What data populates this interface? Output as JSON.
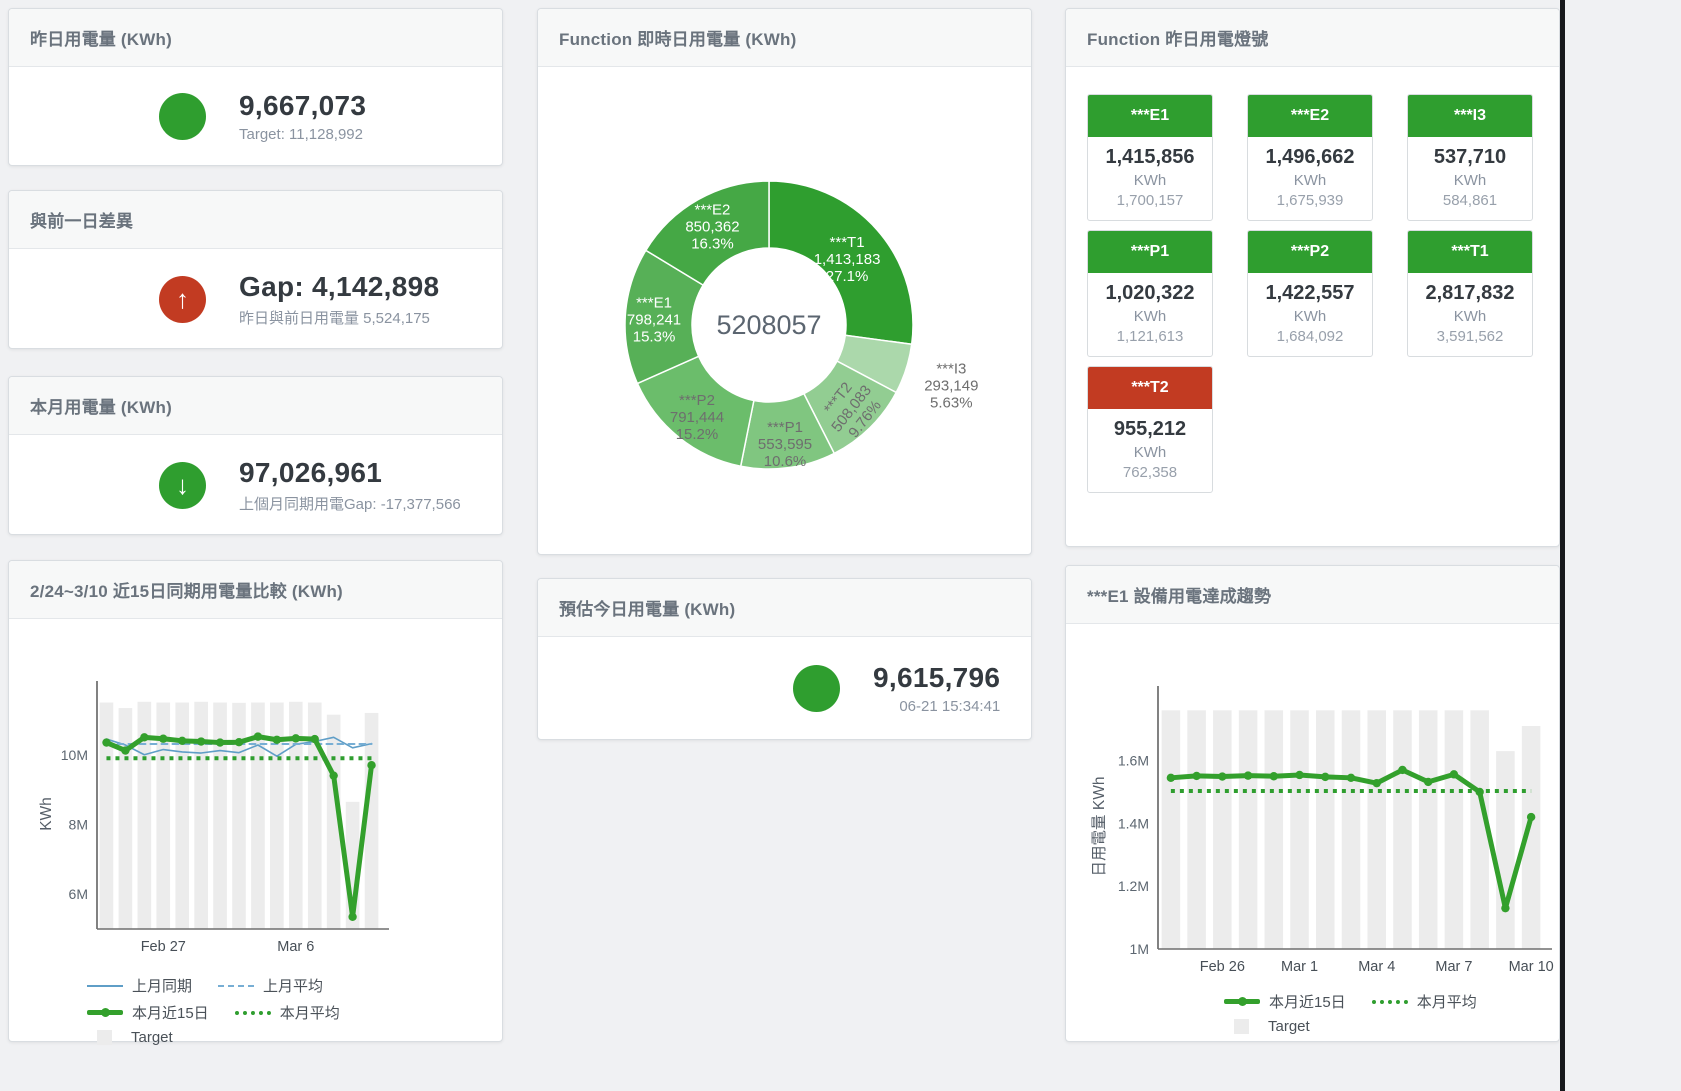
{
  "cards": {
    "yesterday": {
      "title": "昨日用電量 (KWh)",
      "value": "9,667,073",
      "subtext": "Target: 11,128,992",
      "icon": {
        "color": "#2f9e2f",
        "arrow": ""
      }
    },
    "day_gap": {
      "title": "與前一日差異",
      "value": "Gap: 4,142,898",
      "subtext": "昨日與前日用電量 5,524,175",
      "icon": {
        "color": "#c23b22",
        "arrow": "↑"
      }
    },
    "month": {
      "title": "本月用電量 (KWh)",
      "value": "97,026,961",
      "subtext": "上個月同期用電Gap: -17,377,566",
      "icon": {
        "color": "#2f9e2f",
        "arrow": "↓"
      }
    },
    "estimate": {
      "title": "預估今日用電量 (KWh)",
      "value": "9,615,796",
      "subtext": "06-21 15:34:41",
      "icon": {
        "color": "#2f9e2f",
        "arrow": ""
      }
    }
  },
  "status_card": {
    "title": "Function 昨日用電燈號",
    "tiles": [
      {
        "name": "***E1",
        "value": "1,415,856",
        "unit": "KWh",
        "target": "1,700,157",
        "status_color": "#2f9e2f"
      },
      {
        "name": "***E2",
        "value": "1,496,662",
        "unit": "KWh",
        "target": "1,675,939",
        "status_color": "#2f9e2f"
      },
      {
        "name": "***I3",
        "value": "537,710",
        "unit": "KWh",
        "target": "584,861",
        "status_color": "#2f9e2f"
      },
      {
        "name": "***P1",
        "value": "1,020,322",
        "unit": "KWh",
        "target": "1,121,613",
        "status_color": "#2f9e2f"
      },
      {
        "name": "***P2",
        "value": "1,422,557",
        "unit": "KWh",
        "target": "1,684,092",
        "status_color": "#2f9e2f"
      },
      {
        "name": "***T1",
        "value": "2,817,832",
        "unit": "KWh",
        "target": "3,591,562",
        "status_color": "#2f9e2f"
      },
      {
        "name": "***T2",
        "value": "955,212",
        "unit": "KWh",
        "target": "762,358",
        "status_color": "#c23b22"
      }
    ]
  },
  "chart_data": [
    {
      "type": "pie",
      "title": "Function 即時日用電量 (KWh)",
      "center_total": "5208057",
      "total": 5208057,
      "slices": [
        {
          "name": "***T1",
          "value": 1413183,
          "label_value": "1,413,183",
          "pct": "27.1%",
          "color": "#2f9e2f",
          "label_color": "#ffffff",
          "label_r": 0.72
        },
        {
          "name": "***I3",
          "value": 293149,
          "label_value": "293,149",
          "pct": "5.63%",
          "color": "#abd8ab",
          "label_color": "#6e6e6e",
          "label_r": 1.33
        },
        {
          "name": "***T2",
          "value": 508083,
          "label_value": "508,083",
          "pct": "9.76%",
          "color": "#92cd92",
          "label_color": "#6e6e6e",
          "label_r": 0.8,
          "rotate": -52
        },
        {
          "name": "***P1",
          "value": 553595,
          "label_value": "553,595",
          "pct": "10.6%",
          "color": "#80c680",
          "label_color": "#6e6e6e",
          "label_r": 0.82
        },
        {
          "name": "***P2",
          "value": 791444,
          "label_value": "791,444",
          "pct": "15.2%",
          "color": "#6bbd6b",
          "label_color": "#6e6e6e",
          "label_r": 0.8
        },
        {
          "name": "***E1",
          "value": 798241,
          "label_value": "798,241",
          "pct": "15.3%",
          "color": "#57b057",
          "label_color": "#ffffff",
          "label_r": 0.8
        },
        {
          "name": "***E2",
          "value": 850362,
          "label_value": "850,362",
          "pct": "16.3%",
          "color": "#45a845",
          "label_color": "#ffffff",
          "label_r": 0.8
        }
      ]
    },
    {
      "type": "line",
      "title": "2/24~3/10 近15日同期用電量比較 (KWh)",
      "ylabel": "KWh",
      "y_min": 5000000,
      "y_max": 11600000,
      "y_ticks": [
        {
          "value": 6000000,
          "label": "6M"
        },
        {
          "value": 8000000,
          "label": "8M"
        },
        {
          "value": 10000000,
          "label": "10M"
        }
      ],
      "x_ticks": [
        {
          "index": 3,
          "label": "Feb 27"
        },
        {
          "index": 10,
          "label": "Mar 6"
        }
      ],
      "bar_series": {
        "name": "Target",
        "color": "#ececec",
        "values": [
          11500000,
          11340000,
          11520000,
          11500000,
          11500000,
          11520000,
          11500000,
          11490000,
          11500000,
          11500000,
          11520000,
          11500000,
          11150000,
          8650000,
          11200000
        ]
      },
      "series": [
        {
          "name": "上月同期",
          "style": "thin",
          "color": "#5f9ec7",
          "values": [
            10450000,
            10280000,
            10000000,
            10150000,
            10080000,
            10050000,
            10120000,
            10060000,
            10280000,
            9960000,
            10300000,
            10380000,
            10500000,
            10200000,
            10320000
          ]
        },
        {
          "name": "上月平均",
          "style": "dashed",
          "color": "#77aed4",
          "constant": 10310000
        },
        {
          "name": "本月近15日",
          "style": "thick",
          "color": "#33a02c",
          "values": [
            10350000,
            10120000,
            10500000,
            10460000,
            10400000,
            10380000,
            10350000,
            10360000,
            10520000,
            10430000,
            10470000,
            10450000,
            9400000,
            5350000,
            9700000
          ]
        },
        {
          "name": "本月平均",
          "style": "dotted",
          "color": "#2f9e2f",
          "constant": 9900000
        }
      ],
      "legend_rows": [
        [
          {
            "style": "thin",
            "color": "#5f9ec7",
            "label": "上月同期"
          },
          {
            "style": "dashed",
            "color": "#77aed4",
            "label": "上月平均"
          }
        ],
        [
          {
            "style": "thick",
            "color": "#33a02c",
            "label": "本月近15日"
          },
          {
            "style": "dotted",
            "color": "#2f9e2f",
            "label": "本月平均"
          }
        ],
        [
          {
            "style": "square",
            "color": "#ececec",
            "label": "Target"
          }
        ]
      ]
    },
    {
      "type": "line",
      "title": "***E1 設備用電達成趨勢",
      "ylabel": "日用電量 KWh",
      "y_min": 1000000,
      "y_max": 1780000,
      "y_ticks": [
        {
          "value": 1000000,
          "label": "1M"
        },
        {
          "value": 1200000,
          "label": "1.2M"
        },
        {
          "value": 1400000,
          "label": "1.4M"
        },
        {
          "value": 1600000,
          "label": "1.6M"
        }
      ],
      "x_ticks": [
        {
          "index": 2,
          "label": "Feb 26"
        },
        {
          "index": 5,
          "label": "Mar 1"
        },
        {
          "index": 8,
          "label": "Mar 4"
        },
        {
          "index": 11,
          "label": "Mar 7"
        },
        {
          "index": 14,
          "label": "Mar 10"
        }
      ],
      "bar_series": {
        "name": "Target",
        "color": "#ececec",
        "values": [
          1760000,
          1760000,
          1760000,
          1760000,
          1760000,
          1760000,
          1760000,
          1760000,
          1760000,
          1760000,
          1760000,
          1760000,
          1760000,
          1630000,
          1710000
        ]
      },
      "series": [
        {
          "name": "本月近15日",
          "style": "thick",
          "color": "#33a02c",
          "values": [
            1545000,
            1551000,
            1549000,
            1552000,
            1550000,
            1554000,
            1548000,
            1545000,
            1528000,
            1570000,
            1532000,
            1556000,
            1500000,
            1130000,
            1420000
          ]
        },
        {
          "name": "本月平均",
          "style": "dotted",
          "color": "#2f9e2f",
          "constant": 1503000
        }
      ],
      "legend_rows": [
        [
          {
            "style": "thick",
            "color": "#33a02c",
            "label": "本月近15日"
          },
          {
            "style": "dotted",
            "color": "#2f9e2f",
            "label": "本月平均"
          }
        ],
        [
          {
            "style": "square",
            "color": "#ececec",
            "label": "Target"
          }
        ]
      ]
    }
  ]
}
